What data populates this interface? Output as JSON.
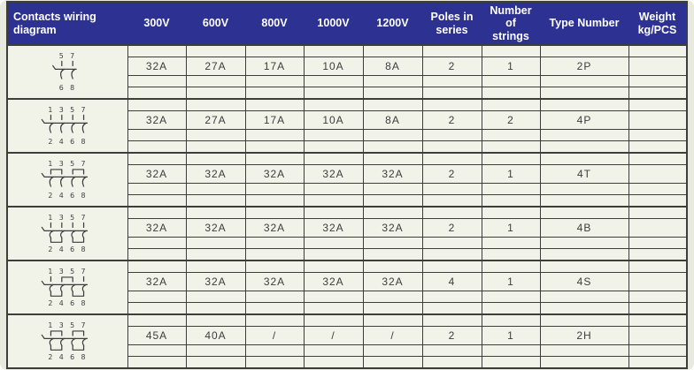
{
  "colors": {
    "page_bg": "#e8eae0",
    "table_bg": "#f1f3e9",
    "header_bg": "#2d3192",
    "header_text": "#ffffff",
    "grid": "#3d3d3a",
    "text": "#3d3d3d"
  },
  "table": {
    "columns": [
      {
        "key": "diagram",
        "lines": [
          "Contacts wiring",
          "diagram"
        ],
        "align": "left"
      },
      {
        "key": "300v",
        "lines": [
          "300V"
        ]
      },
      {
        "key": "600v",
        "lines": [
          "600V"
        ]
      },
      {
        "key": "800v",
        "lines": [
          "800V"
        ]
      },
      {
        "key": "1000v",
        "lines": [
          "1000V"
        ]
      },
      {
        "key": "1200v",
        "lines": [
          "1200V"
        ]
      },
      {
        "key": "poles-in-series",
        "lines": [
          "Poles in",
          "series"
        ]
      },
      {
        "key": "number-of-strings",
        "lines": [
          "Number of",
          "strings"
        ]
      },
      {
        "key": "type-number",
        "lines": [
          "Type Number"
        ]
      },
      {
        "key": "weight",
        "lines": [
          "Weight",
          "kg/PCS"
        ]
      }
    ],
    "rows": [
      {
        "type": "2P",
        "diagram": {
          "top": [
            "5",
            "7"
          ],
          "bottom": [
            "6",
            "8"
          ],
          "top_ticks": [
            0,
            1
          ],
          "top_bridges": [],
          "bottom_bridges": []
        },
        "values": [
          "32A",
          "27A",
          "17A",
          "10A",
          "8A",
          "2",
          "1",
          "2P",
          ""
        ]
      },
      {
        "type": "4P",
        "diagram": {
          "top": [
            "1",
            "3",
            "5",
            "7"
          ],
          "bottom": [
            "2",
            "4",
            "6",
            "8"
          ],
          "top_ticks": [
            0,
            1,
            2,
            3
          ],
          "top_bridges": [],
          "bottom_bridges": []
        },
        "values": [
          "32A",
          "27A",
          "17A",
          "10A",
          "8A",
          "2",
          "2",
          "4P",
          ""
        ]
      },
      {
        "type": "4T",
        "diagram": {
          "top": [
            "1",
            "3",
            "5",
            "7"
          ],
          "bottom": [
            "2",
            "4",
            "6",
            "8"
          ],
          "top_ticks": [],
          "top_bridges": [
            [
              0,
              1
            ],
            [
              2,
              3
            ]
          ],
          "bottom_bridges": []
        },
        "values": [
          "32A",
          "32A",
          "32A",
          "32A",
          "32A",
          "2",
          "1",
          "4T",
          ""
        ]
      },
      {
        "type": "4B",
        "diagram": {
          "top": [
            "1",
            "3",
            "5",
            "7"
          ],
          "bottom": [
            "2",
            "4",
            "6",
            "8"
          ],
          "top_ticks": [
            0,
            1,
            2,
            3
          ],
          "top_bridges": [],
          "bottom_bridges": [
            [
              0,
              1
            ],
            [
              2,
              3
            ]
          ]
        },
        "values": [
          "32A",
          "32A",
          "32A",
          "32A",
          "32A",
          "2",
          "1",
          "4B",
          ""
        ]
      },
      {
        "type": "4S",
        "diagram": {
          "top": [
            "1",
            "3",
            "5",
            "7"
          ],
          "bottom": [
            "2",
            "4",
            "6",
            "8"
          ],
          "top_ticks": [
            0,
            3
          ],
          "top_bridges": [
            [
              1,
              2
            ]
          ],
          "bottom_bridges": [
            [
              0,
              1
            ],
            [
              2,
              3
            ]
          ]
        },
        "values": [
          "32A",
          "32A",
          "32A",
          "32A",
          "32A",
          "4",
          "1",
          "4S",
          ""
        ]
      },
      {
        "type": "2H",
        "diagram": {
          "top": [
            "1",
            "3",
            "5",
            "7"
          ],
          "bottom": [
            "2",
            "4",
            "6",
            "8"
          ],
          "top_ticks": [],
          "top_bridges": [
            [
              0,
              1
            ],
            [
              2,
              3
            ]
          ],
          "bottom_bridges": [
            [
              0,
              1
            ],
            [
              2,
              3
            ]
          ]
        },
        "values": [
          "45A",
          "40A",
          "/",
          "/",
          "/",
          "2",
          "1",
          "2H",
          ""
        ]
      }
    ]
  }
}
